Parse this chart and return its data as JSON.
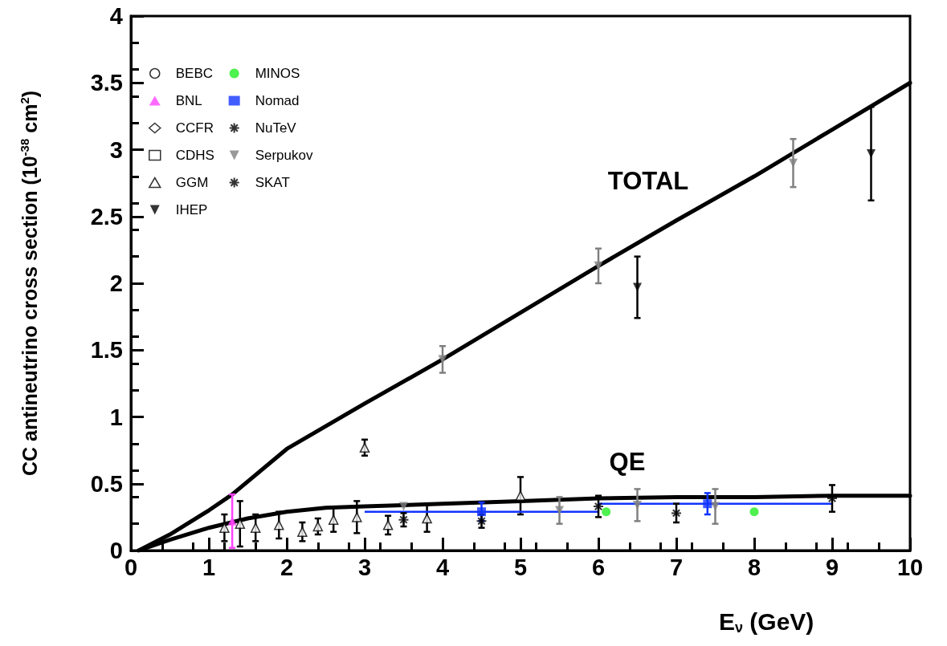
{
  "chart_data": {
    "type": "scatter",
    "xlabel": "E$_{ν}$ (GeV)",
    "ylabel": "CC antineutrino cross section (10$^{-38}$ cm$^{2}$)",
    "xlim": [
      0,
      10
    ],
    "xticks": [
      0,
      1,
      2,
      3,
      4,
      5,
      6,
      7,
      8,
      9,
      10
    ],
    "ylim": [
      0,
      4
    ],
    "yticks": [
      0,
      0.5,
      1,
      1.5,
      2,
      2.5,
      3,
      3.5,
      4
    ],
    "grid": false,
    "legend": "top left",
    "annotations": [
      "TOTAL",
      "QE"
    ],
    "series": [
      {
        "name": "BEBC",
        "color": "#000000",
        "marker": "circle-open"
      },
      {
        "name": "BNL",
        "color": "#ff44ff",
        "marker": "triangle",
        "x": [
          1.3
        ],
        "values": [
          0.22
        ],
        "errors": [
          0.2
        ]
      },
      {
        "name": "CCFR",
        "color": "#000000",
        "marker": "diamond-open"
      },
      {
        "name": "CDHS",
        "color": "#000000",
        "marker": "square-open"
      },
      {
        "name": "GGM",
        "color": "#000000",
        "marker": "triangle-open",
        "x": [
          1.2,
          1.4,
          1.6,
          1.9,
          2.2,
          2.4,
          2.6,
          2.9,
          3.0,
          3.3,
          3.8,
          5.0
        ],
        "values": [
          0.17,
          0.2,
          0.17,
          0.19,
          0.14,
          0.18,
          0.23,
          0.25,
          0.77,
          0.19,
          0.24,
          0.41
        ],
        "errors": [
          0.1,
          0.17,
          0.1,
          0.1,
          0.07,
          0.06,
          0.09,
          0.12,
          0.06,
          0.07,
          0.1,
          0.14
        ]
      },
      {
        "name": "IHEP",
        "color": "#000000",
        "marker": "triangle-down",
        "x": [
          6.5,
          9.5
        ],
        "values": [
          1.97,
          2.97
        ],
        "errors": [
          0.23,
          0.35
        ]
      },
      {
        "name": "MINOS",
        "color": "#22ee22",
        "marker": "circle",
        "x": [
          6.1,
          8.0
        ],
        "values": [
          0.29,
          0.29
        ]
      },
      {
        "name": "Nomad",
        "color": "#1133ff",
        "marker": "square",
        "x": [
          4.5,
          7.4
        ],
        "values": [
          0.29,
          0.35
        ],
        "errors": [
          0.07,
          0.08
        ],
        "xerrors": [
          [
            3,
            6
          ],
          [
            6,
            9
          ]
        ]
      },
      {
        "name": "NuTeV",
        "color": "#000000",
        "marker": "cross"
      },
      {
        "name": "Serpukov",
        "color": "#808080",
        "marker": "triangle-down",
        "x": [
          3.5,
          5.5,
          6.5,
          7.5,
          4.0,
          6.0,
          8.5
        ],
        "values": [
          0.33,
          0.3,
          0.34,
          0.33,
          1.43,
          2.13,
          2.9
        ],
        "errors": [
          null,
          0.1,
          0.12,
          0.13,
          0.1,
          0.13,
          0.18
        ]
      },
      {
        "name": "SKAT",
        "color": "#000000",
        "marker": "cross",
        "x": [
          3.5,
          4.5,
          6.0,
          7.0,
          9.0
        ],
        "values": [
          0.23,
          0.22,
          0.33,
          0.28,
          0.39
        ],
        "errors": [
          0.05,
          0.05,
          0.08,
          0.07,
          0.1
        ]
      },
      {
        "type": "line",
        "color": "#000000",
        "marker": "none",
        "x": [
          0.1,
          0.5,
          1,
          1.3,
          2,
          3,
          4,
          5,
          6,
          7,
          8,
          9,
          10
        ],
        "values": [
          0,
          0.12,
          0.3,
          0.42,
          0.76,
          1.1,
          1.43,
          1.78,
          2.13,
          2.47,
          2.8,
          3.15,
          3.5
        ]
      },
      {
        "type": "line",
        "color": "#000000",
        "marker": "none",
        "x": [
          0.1,
          0.5,
          1,
          1.5,
          2,
          2.5,
          3,
          4,
          5,
          6,
          7,
          8,
          9,
          10
        ],
        "values": [
          0,
          0.08,
          0.17,
          0.24,
          0.29,
          0.32,
          0.33,
          0.35,
          0.37,
          0.39,
          0.4,
          0.4,
          0.41,
          0.41
        ]
      }
    ]
  }
}
